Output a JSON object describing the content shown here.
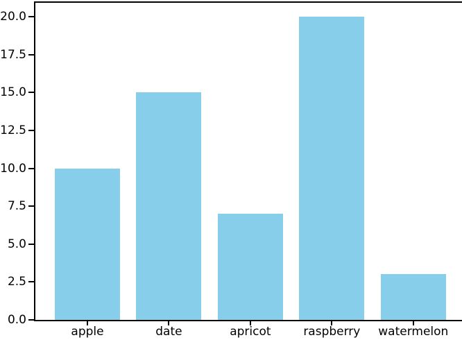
{
  "chart_data": {
    "type": "bar",
    "categories": [
      "apple",
      "date",
      "apricot",
      "raspberry",
      "watermelon"
    ],
    "values": [
      10,
      15,
      7,
      20,
      3
    ],
    "title": "",
    "xlabel": "",
    "ylabel": "",
    "ylim": [
      0,
      21
    ],
    "yticks": [
      0.0,
      2.5,
      5.0,
      7.5,
      10.0,
      12.5,
      15.0,
      17.5,
      20.0
    ],
    "ytick_labels": [
      "0.0",
      "2.5",
      "5.0",
      "7.5",
      "10.0",
      "12.5",
      "15.0",
      "17.5",
      "20.0"
    ],
    "bar_color": "#87CEEB",
    "axis_color": "#000000",
    "text_color": "#000000",
    "grid": false,
    "legend": null
  }
}
